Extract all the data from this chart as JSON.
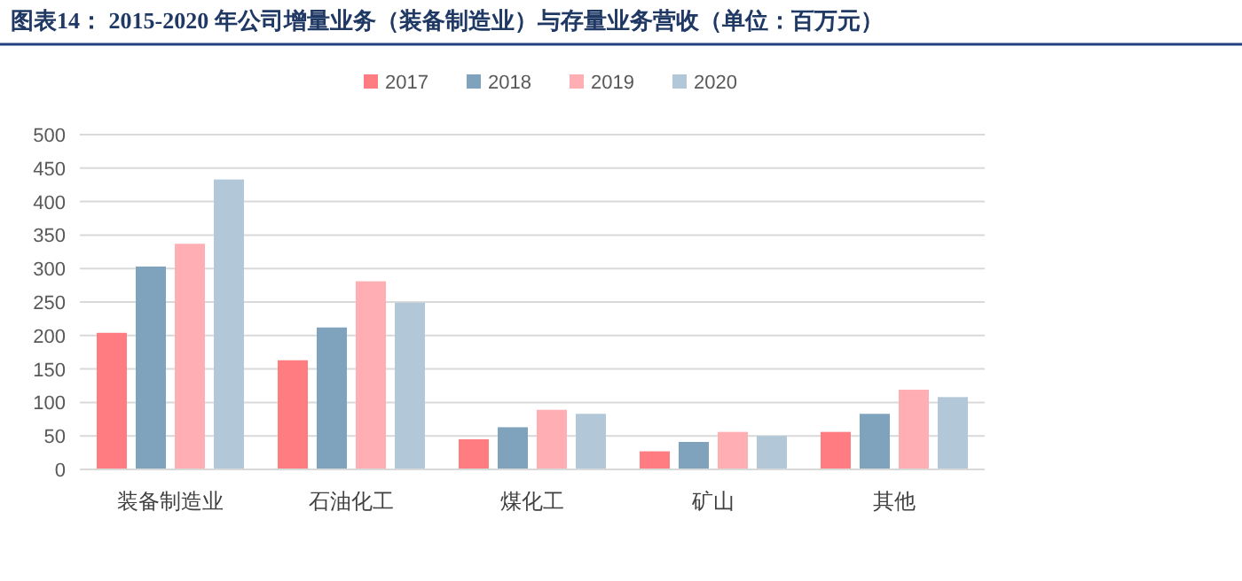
{
  "chart_data": {
    "type": "bar",
    "title": "图表14： 2015-2020 年公司增量业务（装备制造业）与存量业务营收（单位：百万元）",
    "categories": [
      "装备制造业",
      "石油化工",
      "煤化工",
      "矿山",
      "其他"
    ],
    "series": [
      {
        "name": "2017",
        "color": "#ff7c80",
        "values": [
          204,
          163,
          45,
          27,
          56
        ]
      },
      {
        "name": "2018",
        "color": "#7fa3bd",
        "values": [
          303,
          212,
          63,
          41,
          83
        ]
      },
      {
        "name": "2019",
        "color": "#ffafb3",
        "values": [
          337,
          281,
          89,
          56,
          119
        ]
      },
      {
        "name": "2020",
        "color": "#b2c8d8",
        "values": [
          433,
          249,
          83,
          50,
          108
        ]
      }
    ],
    "ylim": [
      0,
      500
    ],
    "yticks": [
      0,
      50,
      100,
      150,
      200,
      250,
      300,
      350,
      400,
      450,
      500
    ],
    "grid": "y",
    "legend": "top"
  }
}
